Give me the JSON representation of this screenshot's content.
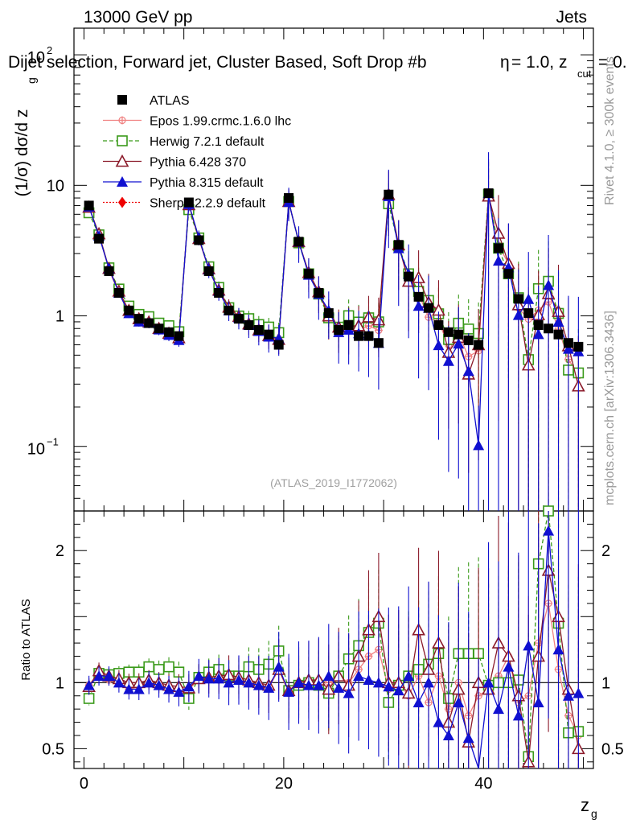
{
  "chart_data": {
    "type": "scatter",
    "header_left": "13000 GeV pp",
    "header_right": "Jets",
    "title": "Dijet selection, Forward jet, Cluster Based, Soft Drop #b",
    "title_tail": "= 1.0, z",
    "title_cut": "cut",
    "title_end": "= 0.",
    "title_eta": "η",
    "ylabel": "(1/σ) dσ/d z",
    "ylabel_sub": "g",
    "ratio_ylabel": "Ratio to ATLAS",
    "xlabel": "z",
    "xlabel_sub": "g",
    "watermark": "(ATLAS_2019_I1772062)",
    "side_top": "Rivet 4.1.0, ≥ 300k events",
    "side_bottom": "mcplots.cern.ch [arXiv:1306.3436]",
    "top_ylim": [
      0.032,
      160
    ],
    "ratio_ylim": [
      0.35,
      2.3
    ],
    "xlim": [
      -1,
      51
    ],
    "xticks": [
      "0",
      "20",
      "40"
    ],
    "top_yticks": [
      "10",
      "1"
    ],
    "top_ytick_exp_10": "10",
    "top_ytick_exp_10_pow": "2",
    "top_ytick_exp_m1": "10",
    "top_ytick_exp_m1_pow": "−1",
    "ratio_yticks": [
      "2",
      "1",
      "0.5"
    ],
    "x": [
      0.5,
      1.5,
      2.5,
      3.5,
      4.5,
      5.5,
      6.5,
      7.5,
      8.5,
      9.5,
      10.5,
      11.5,
      12.5,
      13.5,
      14.5,
      15.5,
      16.5,
      17.5,
      18.5,
      19.5,
      20.5,
      21.5,
      22.5,
      23.5,
      24.5,
      25.5,
      26.5,
      27.5,
      28.5,
      29.5,
      30.5,
      31.5,
      32.5,
      33.5,
      34.5,
      35.5,
      36.5,
      37.5,
      38.5,
      39.5,
      40.5,
      41.5,
      42.5,
      43.5,
      44.5,
      45.5,
      46.5,
      47.5,
      48.5,
      49.5
    ],
    "data": [
      7.0,
      3.9,
      2.2,
      1.5,
      1.1,
      0.95,
      0.88,
      0.8,
      0.75,
      0.7,
      7.4,
      3.8,
      2.2,
      1.5,
      1.1,
      0.95,
      0.85,
      0.78,
      0.72,
      0.6,
      8.0,
      3.7,
      2.1,
      1.5,
      1.05,
      0.78,
      0.85,
      0.7,
      0.7,
      0.62,
      8.5,
      3.5,
      2.0,
      1.4,
      1.15,
      0.85,
      0.75,
      0.72,
      0.65,
      0.6,
      8.7,
      3.3,
      2.1,
      1.35,
      1.05,
      0.85,
      0.8,
      0.72,
      0.62,
      0.58
    ],
    "series": [
      {
        "name": "ATLAS",
        "color": "#000000",
        "marker": "square-filled"
      },
      {
        "name": "Epos 1.99.crmc.1.6.0 lhc",
        "color": "#f08080",
        "marker": "plus-circle",
        "ratio": [
          0.98,
          1.08,
          1.02,
          1.0,
          0.95,
          0.97,
          1.0,
          0.98,
          0.96,
          0.95,
          0.95,
          1.02,
          1.03,
          1.02,
          1.06,
          1.02,
          1.0,
          0.98,
          0.96,
          1.1,
          0.92,
          1.0,
          1.0,
          1.02,
          1.0,
          1.05,
          1.0,
          1.1,
          1.2,
          1.25,
          0.95,
          1.0,
          0.9,
          1.05,
          0.85,
          1.05,
          0.8,
          1.0,
          0.75,
          0.9,
          0.95,
          1.05,
          1.2,
          0.85,
          0.9,
          1.3,
          1.6,
          1.1,
          0.75,
          0.6
        ]
      },
      {
        "name": "Herwig 7.2.1 default",
        "color": "#3a9a1a",
        "marker": "square-open",
        "dash": "5,3",
        "ratio": [
          0.88,
          1.07,
          1.06,
          1.07,
          1.08,
          1.08,
          1.12,
          1.1,
          1.12,
          1.08,
          0.88,
          1.04,
          1.08,
          1.1,
          1.05,
          1.05,
          1.12,
          1.1,
          1.14,
          1.24,
          0.94,
          0.98,
          1.0,
          0.98,
          0.92,
          1.05,
          1.18,
          1.28,
          1.38,
          1.45,
          0.85,
          0.98,
          1.05,
          1.1,
          1.14,
          1.22,
          0.88,
          1.22,
          1.22,
          1.22,
          0.98,
          1.0,
          1.0,
          1.02,
          0.44,
          1.9,
          2.3,
          1.45,
          0.62,
          0.63
        ]
      },
      {
        "name": "Pythia 6.428 370",
        "color": "#8b1a2a",
        "marker": "triangle-open",
        "ratio": [
          0.97,
          1.09,
          1.05,
          1.03,
          1.0,
          1.0,
          1.02,
          1.0,
          0.98,
          0.97,
          0.96,
          1.03,
          1.04,
          1.05,
          1.06,
          1.04,
          1.02,
          1.0,
          0.98,
          1.1,
          0.94,
          1.0,
          1.02,
          1.02,
          0.95,
          1.05,
          0.98,
          1.2,
          1.4,
          1.5,
          1.0,
          1.0,
          0.92,
          1.4,
          1.1,
          1.3,
          0.7,
          0.95,
          0.55,
          1.0,
          0.95,
          1.3,
          1.2,
          0.9,
          0.4,
          1.2,
          1.85,
          1.5,
          0.95,
          0.5
        ]
      },
      {
        "name": "Pythia 8.315 default",
        "color": "#1010d0",
        "marker": "triangle-filled",
        "ratio": [
          0.98,
          1.05,
          1.05,
          1.0,
          0.95,
          0.95,
          1.0,
          0.98,
          0.95,
          0.93,
          0.97,
          1.05,
          1.03,
          1.03,
          1.0,
          1.02,
          1.0,
          0.98,
          0.96,
          1.12,
          0.93,
          1.0,
          0.98,
          0.98,
          1.05,
          0.96,
          0.92,
          1.05,
          1.02,
          1.0,
          0.97,
          0.94,
          1.05,
          0.85,
          1.0,
          0.7,
          0.6,
          0.85,
          0.58,
          0.17,
          1.0,
          0.8,
          1.12,
          0.75,
          1.28,
          0.85,
          2.15,
          1.25,
          0.9,
          0.92
        ]
      },
      {
        "name": "Sherpa 2.2.9 default",
        "color": "#ee0000",
        "marker": "diamond-filled",
        "dash": "2,2",
        "ratio": [
          0.9,
          1.11,
          1.09,
          1.02,
          1.04,
          1.02,
          1.05,
          1.02,
          1.0,
          0.98,
          0.87,
          1.05,
          1.0,
          1.02,
          1.1,
          1.08,
          1.15,
          1.08,
          1.0,
          0.88,
          0.92,
          0.98,
          1.02,
          1.04,
          1.13,
          1.02,
          1.07,
          1.05,
          1.5,
          1.0,
          0.88,
          1.05,
          1.08,
          0.92,
          0.78,
          1.55,
          0.75,
          0.9,
          0.95,
          1.0,
          0.96,
          0.82,
          0.95,
          1.52,
          1.0,
          0.8,
          1.25,
          2.05,
          0.68,
          0.82
        ]
      }
    ]
  }
}
